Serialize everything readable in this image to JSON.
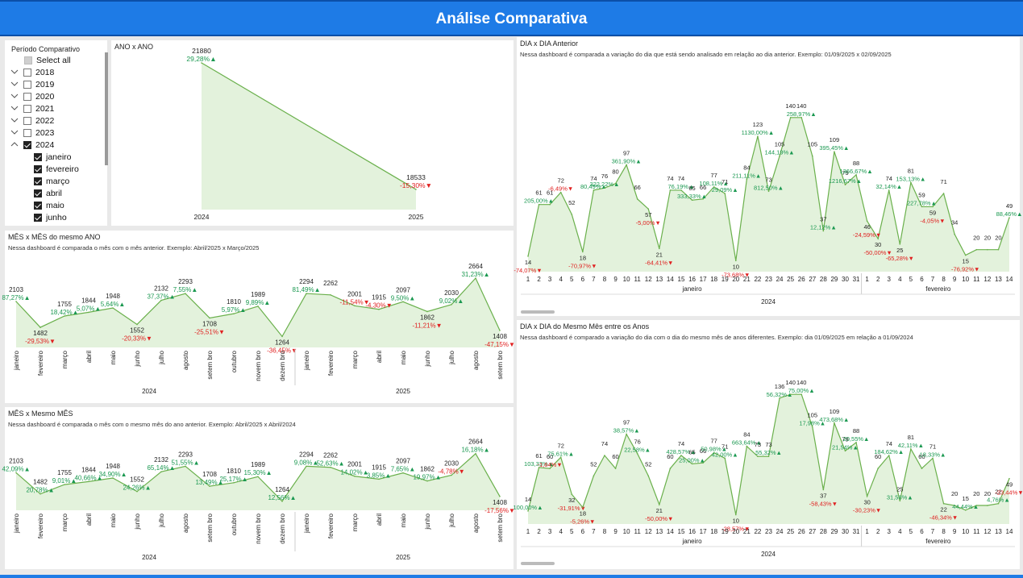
{
  "header": {
    "title": "Análise Comparativa"
  },
  "slicer": {
    "title": "Período Comparativo",
    "select_all": "Select all",
    "items": [
      {
        "label": "2018",
        "checked": false
      },
      {
        "label": "2019",
        "checked": false
      },
      {
        "label": "2020",
        "checked": false
      },
      {
        "label": "2021",
        "checked": false
      },
      {
        "label": "2022",
        "checked": false
      },
      {
        "label": "2023",
        "checked": false
      },
      {
        "label": "2024",
        "checked": true,
        "expanded": true
      }
    ],
    "months": [
      {
        "label": "janeiro",
        "checked": true
      },
      {
        "label": "fevereiro",
        "checked": true
      },
      {
        "label": "março",
        "checked": true
      },
      {
        "label": "abril",
        "checked": true
      },
      {
        "label": "maio",
        "checked": true
      },
      {
        "label": "junho",
        "checked": true
      }
    ]
  },
  "colors": {
    "accent": "#1e7be6",
    "line": "#6ab04c",
    "fill": "#e3f2dc",
    "pos": "#1a9850",
    "neg": "#e02020"
  },
  "chart_data": [
    {
      "id": "ano",
      "title": "ANO x ANO",
      "type": "area",
      "categories": [
        "2024",
        "2025"
      ],
      "values": [
        21880,
        18533
      ],
      "pct": [
        "29,28%",
        "-15,30%"
      ]
    },
    {
      "id": "mes_mes",
      "title": "MÊS x MÊS do mesmo ANO",
      "description": "Nessa dashboard é comparada o mês com o mês anterior. Exemplo: Abril/2025 x Março/2025",
      "type": "area",
      "groups": [
        {
          "label": "2024",
          "count": 12
        },
        {
          "label": "2025",
          "count": 9
        }
      ],
      "categories": [
        "janeiro",
        "fevereiro",
        "março",
        "abril",
        "maio",
        "junho",
        "julho",
        "agosto",
        "setem bro",
        "outubro",
        "novem bro",
        "dezem bro",
        "janeiro",
        "fevereiro",
        "março",
        "abril",
        "maio",
        "junho",
        "julho",
        "agosto",
        "setem bro"
      ],
      "values": [
        2103,
        1482,
        1755,
        1844,
        1948,
        1552,
        2132,
        2293,
        1708,
        1810,
        1989,
        1264,
        2294,
        2262,
        2001,
        1915,
        2097,
        1862,
        2030,
        2664,
        1408
      ],
      "pct": [
        "87,27%",
        "-29,53%",
        "18,42%",
        "5,07%",
        "5,64%",
        "-20,33%",
        "37,37%",
        "7,55%",
        "-25,51%",
        "5,97%",
        "9,89%",
        "-36,45%",
        "81,49%",
        "",
        "-11,54%",
        "-4,30%",
        "9,50%",
        "-11,21%",
        "9,02%",
        "31,23%",
        "-47,15%"
      ]
    },
    {
      "id": "mes_mesmo",
      "title": "MÊS x Mesmo MÊS",
      "description": "Nessa dashboard é comparada o mês com o mesmo mês do ano anterior. Exemplo: Abril/2025 x Abril/2024",
      "type": "area",
      "groups": [
        {
          "label": "2024",
          "count": 12
        },
        {
          "label": "2025",
          "count": 9
        }
      ],
      "categories": [
        "janeiro",
        "fevereiro",
        "março",
        "abril",
        "maio",
        "junho",
        "julho",
        "agosto",
        "setem bro",
        "outubro",
        "novem bro",
        "dezem bro",
        "janeiro",
        "fevereiro",
        "março",
        "abril",
        "maio",
        "junho",
        "julho",
        "agosto",
        "setem bro"
      ],
      "values": [
        2103,
        1482,
        1755,
        1844,
        1948,
        1552,
        2132,
        2293,
        1708,
        1810,
        1989,
        1264,
        2294,
        2262,
        2001,
        1915,
        2097,
        1862,
        2030,
        2664,
        1408
      ],
      "pct": [
        "42,09%",
        "20,78%",
        "9,01%",
        "40,66%",
        "34,90%",
        "24,26%",
        "65,14%",
        "51,55%",
        "13,49%",
        "25,17%",
        "15,30%",
        "12,56%",
        "9,08%",
        "52,63%",
        "14,02%",
        "3,85%",
        "7,65%",
        "19,97%",
        "-4,78%",
        "16,18%",
        "-17,56%"
      ]
    },
    {
      "id": "dia_dia",
      "title": "DIA x DIA Anterior",
      "description": "Nessa dashboard é comparada a variação do dia que está sendo analisado em relação ao dia anterior. Exemplo: 01/09/2025 x 02/09/2025",
      "type": "area",
      "year": "2024",
      "groups": [
        {
          "label": "janeiro",
          "count": 31
        },
        {
          "label": "fevereiro",
          "count": 14
        }
      ],
      "categories": [
        "1",
        "2",
        "3",
        "4",
        "5",
        "6",
        "7",
        "8",
        "9",
        "10",
        "11",
        "12",
        "13",
        "14",
        "15",
        "16",
        "17",
        "18",
        "19",
        "20",
        "21",
        "22",
        "23",
        "24",
        "25",
        "26",
        "27",
        "28",
        "29",
        "30",
        "31",
        "1",
        "2",
        "3",
        "4",
        "5",
        "6",
        "7",
        "8",
        "9",
        "10",
        "11",
        "12",
        "13",
        "14"
      ],
      "values": [
        14,
        61,
        61,
        72,
        52,
        18,
        74,
        76,
        80,
        97,
        66,
        57,
        21,
        74,
        74,
        65,
        66,
        77,
        71,
        10,
        84,
        123,
        73,
        105,
        140,
        140,
        105,
        37,
        109,
        79,
        88,
        46,
        30,
        74,
        25,
        81,
        59,
        59,
        71,
        34,
        15,
        20,
        20,
        20,
        49
      ],
      "pct": [
        "-74,07%",
        "205,00%",
        "",
        "-6,49%",
        "",
        "-70,97%",
        "80,49%",
        "322,22%",
        "",
        "361,90%",
        "",
        "-5,00%",
        "-64,41%",
        "",
        "76,19%",
        "333,33%",
        "",
        "108,11%",
        "29,09%",
        "-73,68%",
        "211,11%",
        "1130,00%",
        "812,50%",
        "144,19%",
        "",
        "258,97%",
        "",
        "12,12%",
        "395,45%",
        "1216,67%",
        "1366,67%",
        "-24,59%",
        "-50,00%",
        "32,14%",
        "-65,28%",
        "153,13%",
        "227,78%",
        "-4,05%",
        "",
        "",
        "-76,92%",
        "",
        "",
        "",
        "88,46%"
      ]
    },
    {
      "id": "dia_mesmo",
      "title": "DIA x DIA do Mesmo Mês entre os Anos",
      "description": "Nessa dashboard é comparado a variação do dia com o dia do mesmo mês de anos diferentes. Exemplo: dia 01/09/2025 em relação a 01/09/2024",
      "type": "area",
      "year": "2024",
      "groups": [
        {
          "label": "janeiro",
          "count": 31
        },
        {
          "label": "fevereiro",
          "count": 14
        }
      ],
      "categories": [
        "1",
        "2",
        "3",
        "4",
        "5",
        "6",
        "7",
        "8",
        "9",
        "10",
        "11",
        "12",
        "13",
        "14",
        "15",
        "16",
        "17",
        "18",
        "19",
        "20",
        "21",
        "22",
        "23",
        "24",
        "25",
        "26",
        "27",
        "28",
        "29",
        "30",
        "31",
        "1",
        "2",
        "3",
        "4",
        "5",
        "6",
        "7",
        "8",
        "9",
        "10",
        "11",
        "12",
        "13",
        "14"
      ],
      "values": [
        14,
        61,
        60,
        72,
        32,
        18,
        52,
        74,
        60,
        97,
        76,
        52,
        21,
        60,
        74,
        65,
        66,
        77,
        71,
        10,
        84,
        73,
        73,
        136,
        140,
        140,
        105,
        37,
        109,
        79,
        88,
        30,
        60,
        74,
        25,
        81,
        60,
        71,
        22,
        20,
        15,
        20,
        20,
        22,
        49
      ],
      "pct": [
        "100,00%",
        "103,33%",
        "-1,64%",
        "75,61%",
        "-31,91%",
        "-5,26%",
        "",
        "",
        "",
        "38,57%",
        "22,58%",
        "",
        "-50,00%",
        "",
        "428,57%",
        "25,00%",
        "",
        "50,98%",
        "42,00%",
        "-28,57%",
        "663,64%",
        "",
        "55,32%",
        "56,32%",
        "",
        "75,00%",
        "17,98%",
        "-58,43%",
        "473,68%",
        "21,54%",
        "20,55%",
        "-30,23%",
        "",
        "184,62%",
        "31,58%",
        "42,11%",
        "",
        "18,33%",
        "-46,34%",
        "",
        "44,44%",
        "",
        "",
        "4,76%",
        "-23,44%"
      ]
    }
  ]
}
